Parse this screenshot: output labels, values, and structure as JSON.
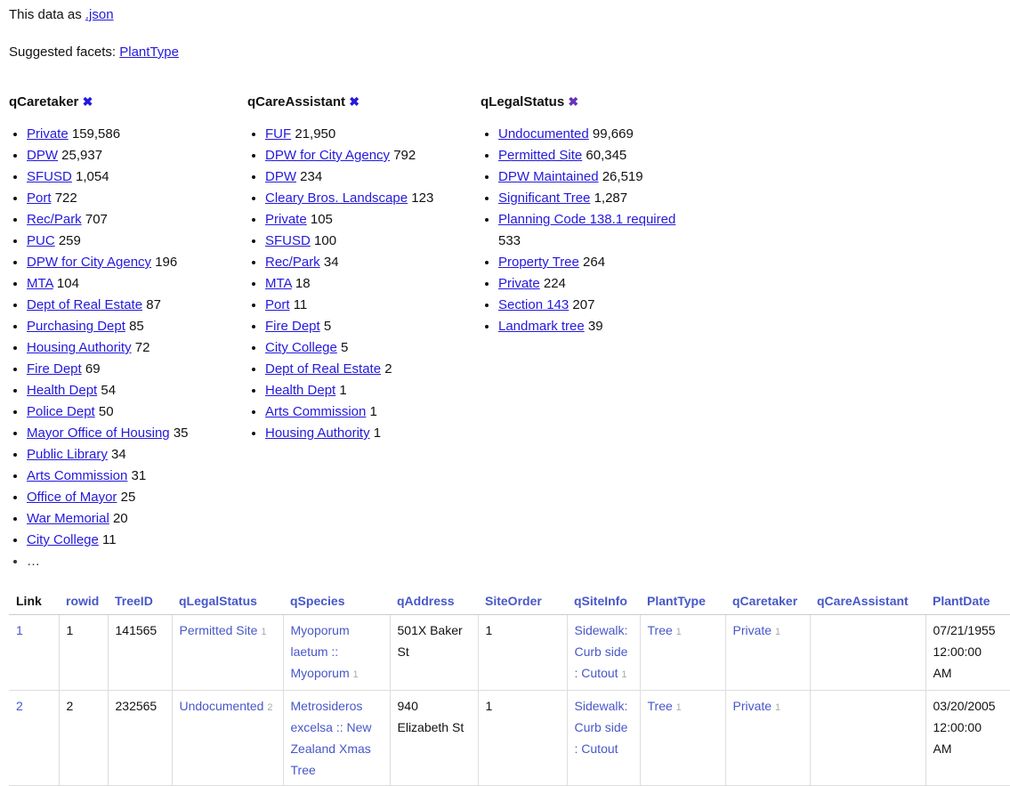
{
  "colors": {
    "facet_link_blue": "#2319dc",
    "table_link_blue": "#4757c8",
    "visited_purple": "#6633bb",
    "count_gray": "#aaaaaa"
  },
  "export_line": {
    "prefix": "This data as ",
    "json_label": ".json"
  },
  "suggested_line": {
    "label": "Suggested facets: ",
    "facet": "PlantType"
  },
  "facets": [
    {
      "title": "qCaretaker",
      "clear": "✖",
      "clear_color": "#2319dc",
      "items": [
        {
          "label": "Private",
          "count": "159,586"
        },
        {
          "label": "DPW",
          "count": "25,937"
        },
        {
          "label": "SFUSD",
          "count": "1,054"
        },
        {
          "label": "Port",
          "count": "722"
        },
        {
          "label": "Rec/Park",
          "count": "707"
        },
        {
          "label": "PUC",
          "count": "259"
        },
        {
          "label": "DPW for City Agency",
          "count": "196"
        },
        {
          "label": "MTA",
          "count": "104"
        },
        {
          "label": "Dept of Real Estate",
          "count": "87"
        },
        {
          "label": "Purchasing Dept",
          "count": "85"
        },
        {
          "label": "Housing Authority",
          "count": "72"
        },
        {
          "label": "Fire Dept",
          "count": "69"
        },
        {
          "label": "Health Dept",
          "count": "54"
        },
        {
          "label": "Police Dept",
          "count": "50"
        },
        {
          "label": "Mayor Office of Housing",
          "count": "35"
        },
        {
          "label": "Public Library",
          "count": "34"
        },
        {
          "label": "Arts Commission",
          "count": "31"
        },
        {
          "label": "Office of Mayor",
          "count": "25"
        },
        {
          "label": "War Memorial",
          "count": "20"
        },
        {
          "label": "City College",
          "count": "11"
        }
      ],
      "more": "…"
    },
    {
      "title": "qCareAssistant",
      "clear": "✖",
      "clear_color": "#2319dc",
      "items": [
        {
          "label": "FUF",
          "count": "21,950"
        },
        {
          "label": "DPW for City Agency",
          "count": "792"
        },
        {
          "label": "DPW",
          "count": "234"
        },
        {
          "label": "Cleary Bros. Landscape",
          "count": "123"
        },
        {
          "label": "Private",
          "count": "105"
        },
        {
          "label": "SFUSD",
          "count": "100"
        },
        {
          "label": "Rec/Park",
          "count": "34"
        },
        {
          "label": "MTA",
          "count": "18"
        },
        {
          "label": "Port",
          "count": "11"
        },
        {
          "label": "Fire Dept",
          "count": "5"
        },
        {
          "label": "City College",
          "count": "5"
        },
        {
          "label": "Dept of Real Estate",
          "count": "2"
        },
        {
          "label": "Health Dept",
          "count": "1"
        },
        {
          "label": "Arts Commission",
          "count": "1"
        },
        {
          "label": "Housing Authority",
          "count": "1"
        }
      ],
      "more": null
    },
    {
      "title": "qLegalStatus",
      "clear": "✖",
      "clear_color": "#6633bb",
      "items": [
        {
          "label": "Undocumented",
          "count": "99,669"
        },
        {
          "label": "Permitted Site",
          "count": "60,345"
        },
        {
          "label": "DPW Maintained",
          "count": "26,519"
        },
        {
          "label": "Significant Tree",
          "count": "1,287"
        },
        {
          "label": "Planning Code 138.1 required",
          "count": "533"
        },
        {
          "label": "Property Tree",
          "count": "264"
        },
        {
          "label": "Private",
          "count": "224"
        },
        {
          "label": "Section 143",
          "count": "207"
        },
        {
          "label": "Landmark tree",
          "count": "39"
        }
      ],
      "more": null
    }
  ],
  "table": {
    "columns": [
      {
        "label": "Link",
        "link": false
      },
      {
        "label": "rowid",
        "link": true
      },
      {
        "label": "TreeID",
        "link": true
      },
      {
        "label": "qLegalStatus",
        "link": true
      },
      {
        "label": "qSpecies",
        "link": true
      },
      {
        "label": "qAddress",
        "link": true
      },
      {
        "label": "SiteOrder",
        "link": true
      },
      {
        "label": "qSiteInfo",
        "link": true
      },
      {
        "label": "PlantType",
        "link": true
      },
      {
        "label": "qCaretaker",
        "link": true
      },
      {
        "label": "qCareAssistant",
        "link": true
      },
      {
        "label": "PlantDate",
        "link": true
      }
    ],
    "rows": [
      [
        {
          "text": "1",
          "link": true
        },
        {
          "text": "1",
          "link": false
        },
        {
          "text": "141565",
          "link": false
        },
        {
          "text": "Permitted Site",
          "link": true,
          "count": "1"
        },
        {
          "text": "Myoporum laetum :: Myoporum",
          "link": true,
          "count": "1"
        },
        {
          "text": "501X Baker St",
          "link": false
        },
        {
          "text": "1",
          "link": false
        },
        {
          "text": "Sidewalk: Curb side : Cutout",
          "link": true,
          "count": "1"
        },
        {
          "text": "Tree",
          "link": true,
          "count": "1"
        },
        {
          "text": "Private",
          "link": true,
          "count": "1"
        },
        {
          "text": "",
          "link": false
        },
        {
          "text": "07/21/1955 12:00:00 AM",
          "link": false
        }
      ],
      [
        {
          "text": "2",
          "link": true
        },
        {
          "text": "2",
          "link": false
        },
        {
          "text": "232565",
          "link": false
        },
        {
          "text": "Undocumented",
          "link": true,
          "count": "2"
        },
        {
          "text": "Metrosideros excelsa :: New Zealand Xmas Tree",
          "link": true
        },
        {
          "text": "940 Elizabeth St",
          "link": false
        },
        {
          "text": "1",
          "link": false
        },
        {
          "text": "Sidewalk: Curb side : Cutout",
          "link": true
        },
        {
          "text": "Tree",
          "link": true,
          "count": "1"
        },
        {
          "text": "Private",
          "link": true,
          "count": "1"
        },
        {
          "text": "",
          "link": false
        },
        {
          "text": "03/20/2005 12:00:00 AM",
          "link": false
        }
      ]
    ]
  }
}
